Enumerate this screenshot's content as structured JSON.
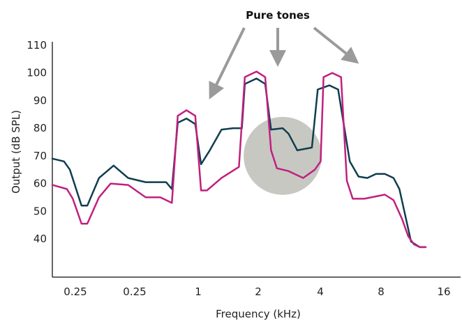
{
  "chart_data": {
    "type": "line",
    "title": "",
    "xlabel": "Frequency (kHz)",
    "ylabel": "Output (dB SPL)",
    "x_ticks": [
      "0.25",
      "0.25",
      "1",
      "2",
      "4",
      "8",
      "16"
    ],
    "y_ticks": [
      "110",
      "100",
      "90",
      "80",
      "70",
      "60",
      "50",
      "40"
    ],
    "ylim": [
      30,
      112
    ],
    "x_range": [
      0,
      7
    ],
    "grid": false,
    "legend": "none",
    "annotation": {
      "text": "Pure tones",
      "points_to_peaks_at_x": [
        1.28,
        2.3,
        4.6
      ]
    },
    "highlight": {
      "shape": "circle",
      "center": {
        "x": 3.95,
        "y": 70
      },
      "color": "#c8c8c3"
    },
    "series": [
      {
        "color": "#0f3d4f",
        "points": [
          [
            0,
            69
          ],
          [
            0.2,
            68
          ],
          [
            0.3,
            65
          ],
          [
            0.5,
            52
          ],
          [
            0.6,
            52
          ],
          [
            0.8,
            62
          ],
          [
            1.05,
            66.5
          ],
          [
            1.3,
            62
          ],
          [
            1.6,
            60.5
          ],
          [
            1.95,
            60.5
          ],
          [
            2.05,
            58
          ],
          [
            2.15,
            82
          ],
          [
            2.3,
            83.5
          ],
          [
            2.45,
            81.5
          ],
          [
            2.55,
            67
          ],
          [
            2.7,
            72
          ],
          [
            2.9,
            79.5
          ],
          [
            3.1,
            80
          ],
          [
            3.25,
            80
          ],
          [
            3.3,
            96
          ],
          [
            3.5,
            98
          ],
          [
            3.65,
            96
          ],
          [
            3.75,
            79.5
          ],
          [
            3.95,
            80
          ],
          [
            4.05,
            78
          ],
          [
            4.2,
            72
          ],
          [
            4.45,
            73
          ],
          [
            4.55,
            94
          ],
          [
            4.75,
            95.5
          ],
          [
            4.9,
            94
          ],
          [
            5.1,
            68
          ],
          [
            5.25,
            62.5
          ],
          [
            5.4,
            62
          ],
          [
            5.55,
            63.5
          ],
          [
            5.7,
            63.5
          ],
          [
            5.85,
            62
          ],
          [
            5.95,
            58
          ],
          [
            6.15,
            39
          ],
          [
            6.3,
            37
          ],
          [
            6.4,
            37
          ]
        ]
      },
      {
        "color": "#c0207f",
        "points": [
          [
            0,
            59.5
          ],
          [
            0.25,
            58
          ],
          [
            0.35,
            54.5
          ],
          [
            0.5,
            45.5
          ],
          [
            0.6,
            45.5
          ],
          [
            0.8,
            55
          ],
          [
            1.0,
            60
          ],
          [
            1.3,
            59.5
          ],
          [
            1.6,
            55
          ],
          [
            1.85,
            55
          ],
          [
            2.05,
            53
          ],
          [
            2.15,
            84.5
          ],
          [
            2.3,
            86.5
          ],
          [
            2.45,
            84.5
          ],
          [
            2.55,
            57.5
          ],
          [
            2.65,
            57.5
          ],
          [
            2.9,
            62
          ],
          [
            3.2,
            66
          ],
          [
            3.3,
            98.5
          ],
          [
            3.5,
            100.5
          ],
          [
            3.65,
            98.5
          ],
          [
            3.75,
            72
          ],
          [
            3.85,
            65.5
          ],
          [
            4.05,
            64.5
          ],
          [
            4.3,
            62
          ],
          [
            4.5,
            65
          ],
          [
            4.6,
            68
          ],
          [
            4.65,
            98.5
          ],
          [
            4.8,
            100
          ],
          [
            4.95,
            98.5
          ],
          [
            5.05,
            61
          ],
          [
            5.15,
            54.5
          ],
          [
            5.35,
            54.5
          ],
          [
            5.7,
            56
          ],
          [
            5.85,
            54
          ],
          [
            6.0,
            47
          ],
          [
            6.1,
            41
          ],
          [
            6.2,
            38
          ],
          [
            6.3,
            37
          ],
          [
            6.4,
            37
          ]
        ]
      }
    ]
  }
}
